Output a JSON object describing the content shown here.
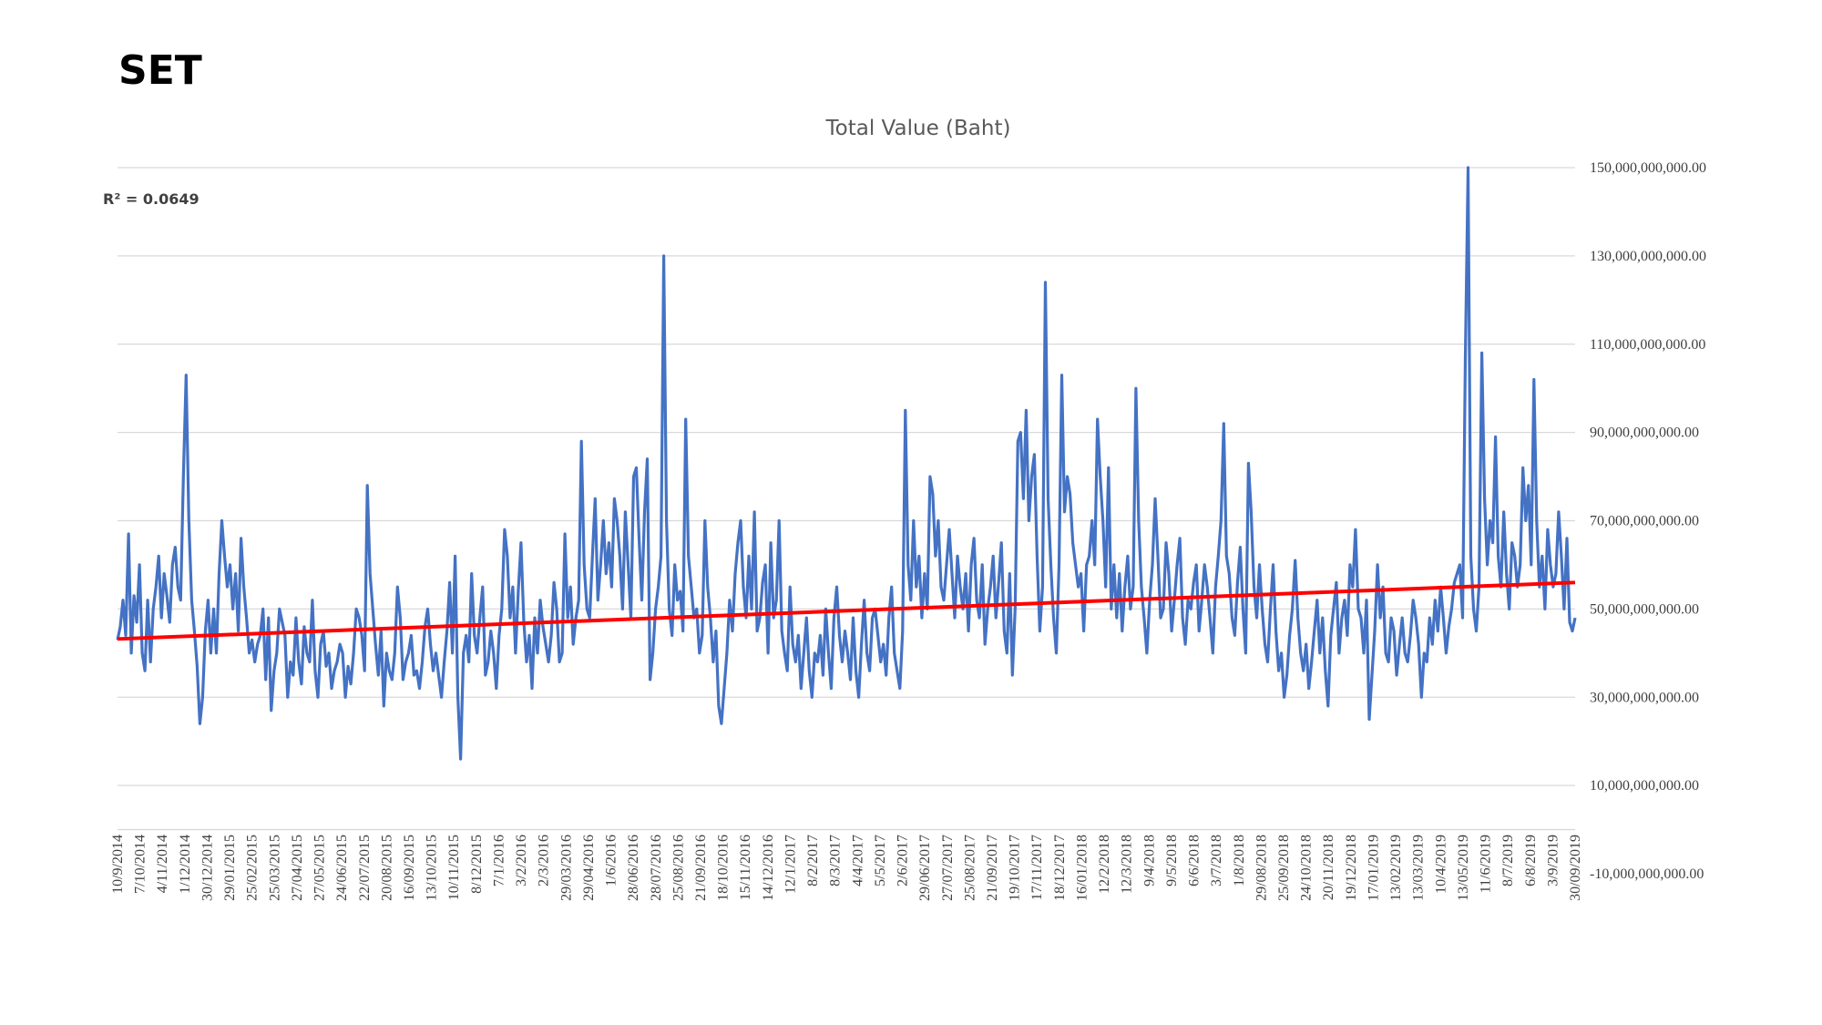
{
  "page": {
    "title": "SET"
  },
  "colors": {
    "series": "#4472C4",
    "trendline": "#FF0000",
    "grid": "#D9D9D9",
    "text": "#404040"
  },
  "chart_data": {
    "type": "line",
    "title": "Total Value (Baht)",
    "xlabel": "",
    "ylabel": "",
    "ylim": [
      -10000000000,
      150000000000
    ],
    "y_axis_position": "right",
    "y_ticks": [
      -10000000000,
      10000000000,
      30000000000,
      50000000000,
      70000000000,
      90000000000,
      110000000000,
      130000000000,
      150000000000
    ],
    "y_tick_labels": [
      "-10,000,000,000.00",
      "10,000,000,000.00",
      "30,000,000,000.00",
      "50,000,000,000.00",
      "70,000,000,000.00",
      "90,000,000,000.00",
      "110,000,000,000.00",
      "130,000,000,000.00",
      "150,000,000,000.00"
    ],
    "x_tick_labels": [
      "10/9/2014",
      "7/10/2014",
      "4/11/2014",
      "1/12/2014",
      "30/12/2014",
      "29/01/2015",
      "25/02/2015",
      "25/03/2015",
      "27/04/2015",
      "27/05/2015",
      "24/06/2015",
      "22/07/2015",
      "20/08/2015",
      "16/09/2015",
      "13/10/2015",
      "10/11/2015",
      "8/12/2015",
      "7/1/2016",
      "3/2/2016",
      "2/3/2016",
      "29/03/2016",
      "29/04/2016",
      "1/6/2016",
      "28/06/2016",
      "28/07/2016",
      "25/08/2016",
      "21/09/2016",
      "18/10/2016",
      "15/11/2016",
      "14/12/2016",
      "12/1/2017",
      "8/2/2017",
      "8/3/2017",
      "4/4/2017",
      "5/5/2017",
      "2/6/2017",
      "29/06/2017",
      "27/07/2017",
      "25/08/2017",
      "21/09/2017",
      "19/10/2017",
      "17/11/2017",
      "18/12/2017",
      "16/01/2018",
      "12/2/2018",
      "12/3/2018",
      "9/4/2018",
      "9/5/2018",
      "6/6/2018",
      "3/7/2018",
      "1/8/2018",
      "29/08/2018",
      "25/09/2018",
      "24/10/2018",
      "20/11/2018",
      "19/12/2018",
      "17/01/2019",
      "13/02/2019",
      "13/03/2019",
      "10/4/2019",
      "13/05/2019",
      "11/6/2019",
      "8/7/2019",
      "6/8/2019",
      "3/9/2019",
      "30/09/2019"
    ],
    "series": [
      {
        "name": "Total Value (Baht)",
        "values": [
          43,
          46,
          52,
          44,
          67,
          40,
          53,
          47,
          60,
          40,
          36,
          52,
          38,
          50,
          55,
          62,
          48,
          58,
          53,
          47,
          60,
          64,
          55,
          52,
          80,
          103,
          70,
          52,
          45,
          37,
          24,
          30,
          45,
          52,
          40,
          50,
          40,
          58,
          70,
          62,
          55,
          60,
          50,
          58,
          45,
          66,
          55,
          48,
          40,
          43,
          38,
          42,
          44,
          50,
          34,
          48,
          27,
          36,
          40,
          50,
          47,
          44,
          30,
          38,
          35,
          48,
          38,
          33,
          46,
          40,
          38,
          52,
          36,
          30,
          42,
          45,
          37,
          40,
          32,
          36,
          38,
          42,
          40,
          30,
          37,
          33,
          40,
          50,
          48,
          44,
          36,
          78,
          58,
          50,
          42,
          35,
          45,
          28,
          40,
          36,
          34,
          40,
          55,
          48,
          34,
          38,
          40,
          44,
          35,
          36,
          32,
          38,
          46,
          50,
          42,
          36,
          40,
          35,
          30,
          38,
          45,
          56,
          40,
          62,
          30,
          16,
          40,
          44,
          38,
          58,
          44,
          40,
          48,
          55,
          35,
          38,
          45,
          40,
          32,
          44,
          50,
          68,
          62,
          48,
          55,
          40,
          54,
          65,
          47,
          38,
          44,
          32,
          48,
          40,
          52,
          46,
          42,
          38,
          44,
          56,
          50,
          38,
          40,
          67,
          48,
          55,
          42,
          48,
          52,
          88,
          60,
          50,
          48,
          62,
          75,
          52,
          60,
          70,
          58,
          65,
          55,
          75,
          70,
          62,
          50,
          72,
          60,
          48,
          80,
          82,
          66,
          52,
          72,
          84,
          34,
          40,
          50,
          55,
          62,
          130,
          70,
          50,
          44,
          60,
          52,
          54,
          45,
          93,
          62,
          55,
          48,
          50,
          40,
          44,
          70,
          55,
          48,
          38,
          45,
          28,
          24,
          32,
          40,
          52,
          45,
          58,
          65,
          70,
          55,
          48,
          62,
          50,
          72,
          45,
          48,
          56,
          60,
          40,
          65,
          48,
          52,
          70,
          45,
          40,
          36,
          55,
          42,
          38,
          44,
          32,
          40,
          48,
          36,
          30,
          40,
          38,
          44,
          35,
          50,
          40,
          32,
          48,
          55,
          44,
          38,
          45,
          40,
          34,
          48,
          36,
          30,
          42,
          52,
          40,
          36,
          48,
          50,
          44,
          38,
          42,
          35,
          48,
          55,
          40,
          36,
          32,
          45,
          95,
          60,
          52,
          70,
          55,
          62,
          48,
          58,
          50,
          80,
          76,
          62,
          70,
          55,
          52,
          60,
          68,
          58,
          48,
          62,
          55,
          50,
          58,
          45,
          60,
          66,
          52,
          48,
          60,
          42,
          50,
          55,
          62,
          48,
          56,
          65,
          45,
          40,
          58,
          35,
          50,
          88,
          90,
          75,
          95,
          70,
          80,
          85,
          62,
          45,
          55,
          124,
          75,
          60,
          48,
          40,
          60,
          103,
          72,
          80,
          76,
          65,
          60,
          55,
          58,
          45,
          60,
          62,
          70,
          60,
          93,
          80,
          70,
          55,
          82,
          50,
          60,
          48,
          58,
          45,
          55,
          62,
          50,
          55,
          100,
          70,
          55,
          48,
          40,
          52,
          60,
          75,
          62,
          48,
          50,
          65,
          58,
          45,
          52,
          60,
          66,
          48,
          42,
          52,
          50,
          56,
          60,
          45,
          52,
          60,
          55,
          48,
          40,
          55,
          62,
          70,
          92,
          62,
          58,
          48,
          44,
          56,
          64,
          50,
          40,
          83,
          72,
          55,
          48,
          60,
          50,
          42,
          38,
          50,
          60,
          45,
          36,
          40,
          30,
          35,
          44,
          50,
          61,
          48,
          40,
          36,
          42,
          32,
          38,
          45,
          52,
          40,
          48,
          36,
          28,
          44,
          50,
          56,
          40,
          48,
          52,
          44,
          60,
          55,
          68,
          50,
          48,
          40,
          52,
          25,
          35,
          45,
          60,
          48,
          55,
          40,
          38,
          48,
          45,
          35,
          42,
          48,
          40,
          38,
          44,
          52,
          48,
          42,
          30,
          40,
          38,
          48,
          42,
          52,
          45,
          55,
          48,
          40,
          46,
          50,
          56,
          58,
          60,
          48,
          107,
          150,
          62,
          50,
          45,
          55,
          108,
          75,
          60,
          70,
          65,
          89,
          62,
          55,
          72,
          58,
          50,
          65,
          62,
          55,
          60,
          82,
          70,
          78,
          60,
          102,
          70,
          55,
          62,
          50,
          68,
          60,
          55,
          58,
          72,
          62,
          50,
          66,
          47,
          45,
          48
        ]
      }
    ],
    "trendline": {
      "type": "linear",
      "start": 43.2,
      "end": 56,
      "r_squared_label": "R² = 0.0649"
    }
  }
}
